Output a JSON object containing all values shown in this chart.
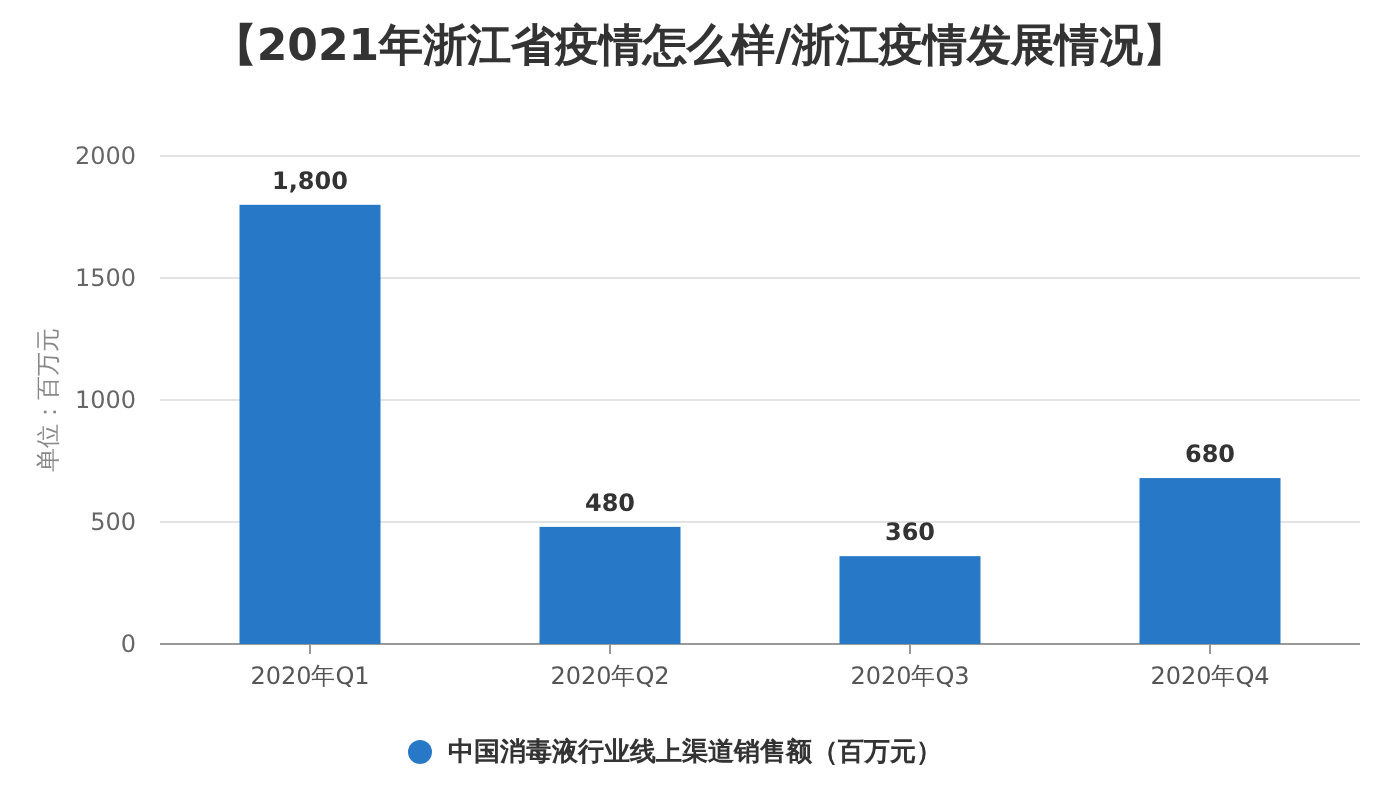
{
  "chart_data": {
    "type": "bar",
    "title": "【2021年浙江省疫情怎么样/浙江疫情发展情况】",
    "ylabel": "单位：百万元",
    "categories": [
      "2020年Q1",
      "2020年Q2",
      "2020年Q3",
      "2020年Q4"
    ],
    "series": [
      {
        "name": "中国消毒液行业线上渠道销售额（百万元）",
        "color": "#2878c8",
        "values": [
          1800,
          480,
          360,
          680
        ],
        "value_labels": [
          "1,800",
          "480",
          "360",
          "680"
        ]
      }
    ],
    "ylim": [
      0,
      2000
    ],
    "yticks": [
      0,
      500,
      1000,
      1500,
      2000
    ],
    "grid": "y",
    "legend": "bottom"
  }
}
